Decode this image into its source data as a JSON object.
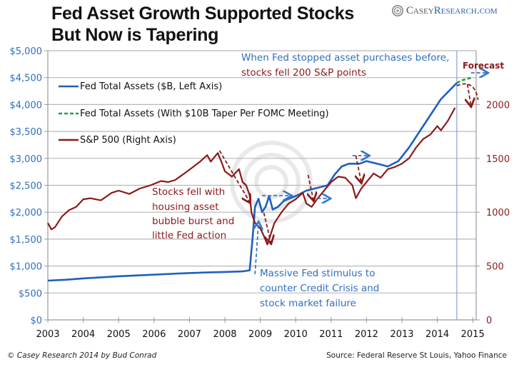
{
  "header": {
    "title_line1": "Fed Asset Growth Supported Stocks",
    "title_line2": "But Now is Tapering",
    "logo_part1": "Casey ",
    "logo_part2": "Research.com"
  },
  "footer": {
    "credit": "© Casey Research 2014 by Bud Conrad",
    "source": "Source: Federal Reserve St Louis, Yahoo Finance"
  },
  "colors": {
    "fed": "#1f5fbf",
    "taper": "#20a040",
    "sp": "#8b1a1a",
    "left_axis_text": "#2f6fbf",
    "right_axis_text": "#8b1a1a",
    "grid": "#b8b8b8"
  },
  "chart_data": {
    "type": "line",
    "title": "Fed Asset Growth Supported Stocks But Now is Tapering",
    "xlabel": "",
    "x_ticks": [
      "2003",
      "2004",
      "2005",
      "2006",
      "2007",
      "2008",
      "2009",
      "2010",
      "2011",
      "2012",
      "2013",
      "2014",
      "2015"
    ],
    "xlim": [
      2003,
      2015.2
    ],
    "left_axis": {
      "label": "Fed Total Assets ($B)",
      "ylim": [
        0,
        5000
      ],
      "ticks": [
        "$0",
        "$500",
        "$1,000",
        "$1,500",
        "$2,000",
        "$2,500",
        "$3,000",
        "$3,500",
        "$4,000",
        "$4,500",
        "$5,000"
      ]
    },
    "right_axis": {
      "label": "S&P 500",
      "ylim": [
        0,
        2500
      ],
      "ticks": [
        "0",
        "500",
        "1000",
        "1500",
        "2000"
      ]
    },
    "grid": true,
    "legend": {
      "placement": "top-left",
      "entries": [
        "Fed Total Assets ($B, Left Axis)",
        "Fed Total Assets (With $10B Taper Per FOMC Meeting)",
        "S&P 500 (Right Axis)"
      ]
    },
    "forecast_line_x": 2014.55,
    "series": [
      {
        "name": "Fed Total Assets ($B, Left Axis)",
        "axis": "left",
        "style": "solid",
        "x": [
          2003.0,
          2003.5,
          2004.0,
          2004.5,
          2005.0,
          2005.5,
          2006.0,
          2006.5,
          2007.0,
          2007.5,
          2008.0,
          2008.5,
          2008.7,
          2008.78,
          2008.85,
          2008.95,
          2009.05,
          2009.15,
          2009.25,
          2009.35,
          2009.5,
          2009.65,
          2009.8,
          2010.0,
          2010.3,
          2010.6,
          2010.9,
          2011.1,
          2011.3,
          2011.5,
          2011.8,
          2012.0,
          2012.3,
          2012.6,
          2012.9,
          2013.2,
          2013.5,
          2013.8,
          2014.1,
          2014.4,
          2014.55
        ],
        "values": [
          730,
          745,
          770,
          790,
          810,
          825,
          840,
          855,
          870,
          880,
          890,
          900,
          920,
          1500,
          2100,
          2250,
          2000,
          2100,
          2300,
          2050,
          2100,
          2200,
          2250,
          2300,
          2400,
          2450,
          2500,
          2700,
          2850,
          2900,
          2900,
          2950,
          2900,
          2850,
          2950,
          3200,
          3500,
          3800,
          4100,
          4300,
          4400
        ]
      },
      {
        "name": "Fed Total Assets (With $10B Taper Per FOMC Meeting)",
        "axis": "left",
        "style": "dashed",
        "x": [
          2014.55,
          2014.7,
          2014.85,
          2015.0
        ],
        "values": [
          4400,
          4450,
          4480,
          4500
        ]
      },
      {
        "name": "S&P 500 (Right Axis)",
        "axis": "right",
        "style": "solid",
        "x": [
          2003.0,
          2003.1,
          2003.2,
          2003.4,
          2003.6,
          2003.8,
          2004.0,
          2004.2,
          2004.5,
          2004.8,
          2005.0,
          2005.3,
          2005.6,
          2005.9,
          2006.2,
          2006.4,
          2006.6,
          2006.9,
          2007.1,
          2007.3,
          2007.5,
          2007.6,
          2007.8,
          2007.9,
          2008.0,
          2008.2,
          2008.4,
          2008.5,
          2008.6,
          2008.7,
          2008.75,
          2008.85,
          2009.0,
          2009.1,
          2009.2,
          2009.4,
          2009.6,
          2009.8,
          2010.0,
          2010.2,
          2010.3,
          2010.45,
          2010.6,
          2010.8,
          2011.0,
          2011.2,
          2011.4,
          2011.6,
          2011.7,
          2011.85,
          2012.0,
          2012.2,
          2012.4,
          2012.6,
          2012.8,
          2013.0,
          2013.2,
          2013.4,
          2013.6,
          2013.8,
          2014.0,
          2014.1,
          2014.3,
          2014.5
        ],
        "values": [
          900,
          840,
          860,
          960,
          1020,
          1050,
          1120,
          1130,
          1110,
          1180,
          1200,
          1170,
          1220,
          1250,
          1290,
          1280,
          1300,
          1370,
          1420,
          1470,
          1530,
          1470,
          1550,
          1470,
          1380,
          1330,
          1400,
          1280,
          1250,
          1160,
          1000,
          900,
          850,
          780,
          700,
          900,
          1000,
          1080,
          1120,
          1180,
          1080,
          1050,
          1120,
          1200,
          1280,
          1330,
          1320,
          1250,
          1130,
          1220,
          1280,
          1360,
          1320,
          1400,
          1420,
          1450,
          1500,
          1600,
          1680,
          1720,
          1800,
          1760,
          1850,
          1970
        ]
      }
    ],
    "annotations": [
      "When Fed stopped asset purchases before,",
      "stocks fell 200 S&P points",
      "Forecast",
      "Stocks fell with",
      "housing asset",
      "bubble burst and",
      "little Fed action",
      "Massive Fed stimulus to",
      "counter Credit Crisis and",
      "stock market failure"
    ]
  }
}
